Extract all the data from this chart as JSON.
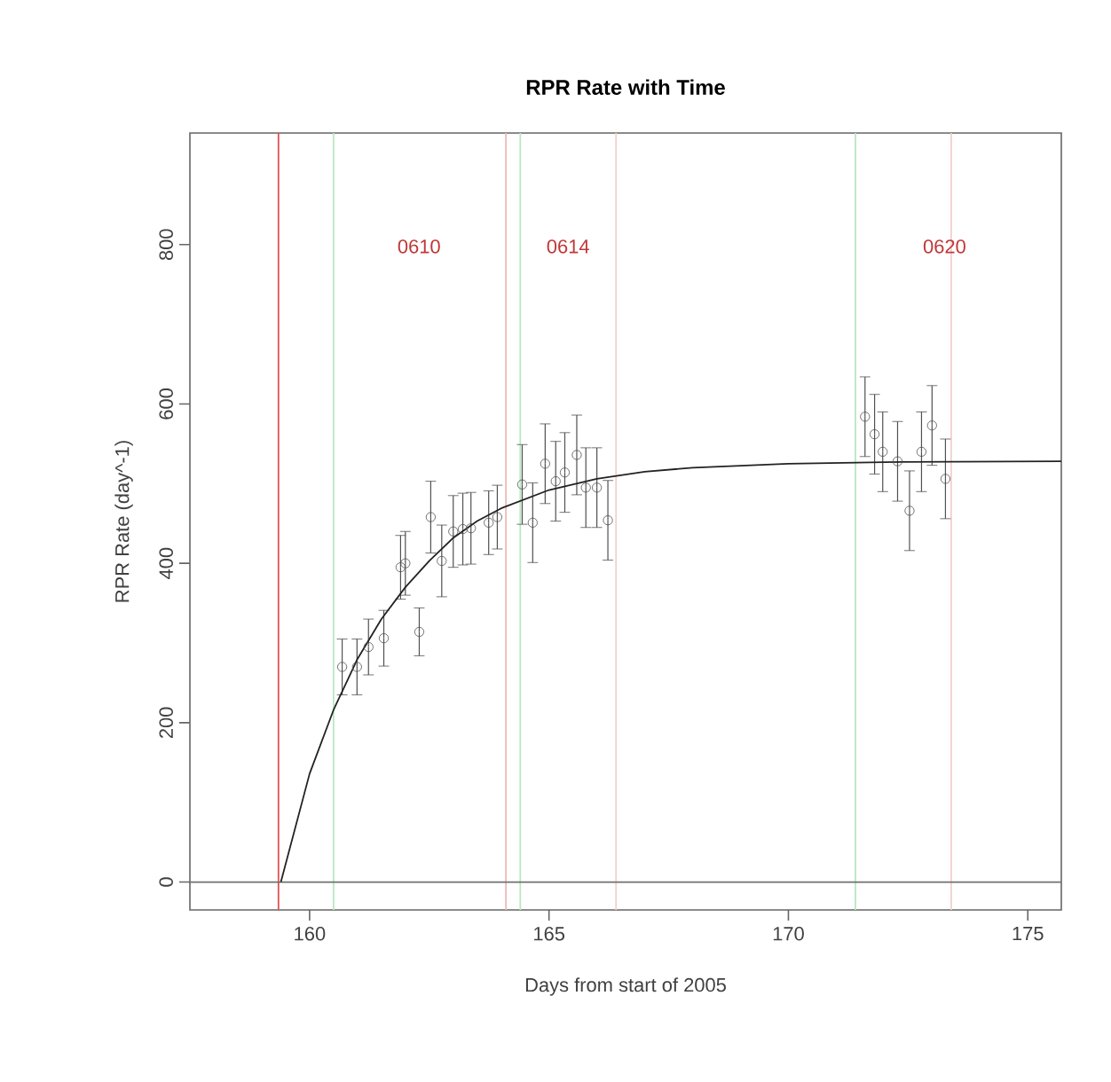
{
  "chart_data": {
    "type": "scatter",
    "title": "RPR Rate with Time",
    "xlabel": "Days from start of 2005",
    "ylabel": "RPR Rate (day^-1)",
    "xlim": [
      157.5,
      175.7
    ],
    "ylim": [
      -35,
      940
    ],
    "xticks": [
      160,
      165,
      170,
      175
    ],
    "yticks": [
      0,
      200,
      400,
      600,
      800
    ],
    "grid": false,
    "series": [
      {
        "marker": "circle",
        "color": "#505050",
        "x": [
          160.68,
          160.99,
          161.23,
          161.55,
          161.9,
          162.0,
          162.29,
          162.53,
          162.76,
          163.0,
          163.2,
          163.37,
          163.74,
          163.92,
          164.44,
          164.66,
          164.92,
          165.14,
          165.33,
          165.58,
          165.77,
          166.0,
          166.23,
          171.6,
          171.8,
          171.97,
          172.28,
          172.53,
          172.78,
          173.0,
          173.28
        ],
        "values": [
          270,
          270,
          295,
          306,
          395,
          400,
          314,
          458,
          403,
          440,
          443,
          444,
          451,
          458,
          499,
          451,
          525,
          503,
          514,
          536,
          495,
          495,
          454,
          584,
          562,
          540,
          528,
          466,
          540,
          573,
          506
        ],
        "errors": [
          35,
          35,
          35,
          35,
          40,
          40,
          30,
          45,
          45,
          45,
          45,
          45,
          40,
          40,
          50,
          50,
          50,
          50,
          50,
          50,
          50,
          50,
          50,
          50,
          50,
          50,
          50,
          50,
          50,
          50,
          50
        ]
      },
      {
        "type": "line",
        "color": "#222222",
        "x": [
          159.4,
          160.0,
          160.5,
          161.0,
          161.5,
          162.0,
          162.5,
          163.0,
          163.5,
          164.0,
          165.0,
          166.0,
          167.0,
          168.0,
          170.0,
          172.0,
          175.7
        ],
        "values": [
          0,
          136,
          216,
          280,
          330,
          370,
          403,
          432,
          453,
          469,
          492,
          506,
          515,
          520,
          525,
          527,
          528
        ]
      }
    ],
    "ref_lines": [
      {
        "axis": "x",
        "value": 159.35,
        "color": "#e05050"
      },
      {
        "axis": "x",
        "value": 160.5,
        "color": "#b8e8c0"
      },
      {
        "axis": "x",
        "value": 164.1,
        "color": "#f0b8b8"
      },
      {
        "axis": "x",
        "value": 164.4,
        "color": "#b8e8c0"
      },
      {
        "axis": "x",
        "value": 166.4,
        "color": "#f0d0d0"
      },
      {
        "axis": "x",
        "value": 171.4,
        "color": "#b8e8c0"
      },
      {
        "axis": "x",
        "value": 173.4,
        "color": "#f0d0d0"
      },
      {
        "axis": "y",
        "value": 0,
        "color": "#707070"
      }
    ],
    "annotations": [
      "0610",
      "0614",
      "0620"
    ]
  }
}
